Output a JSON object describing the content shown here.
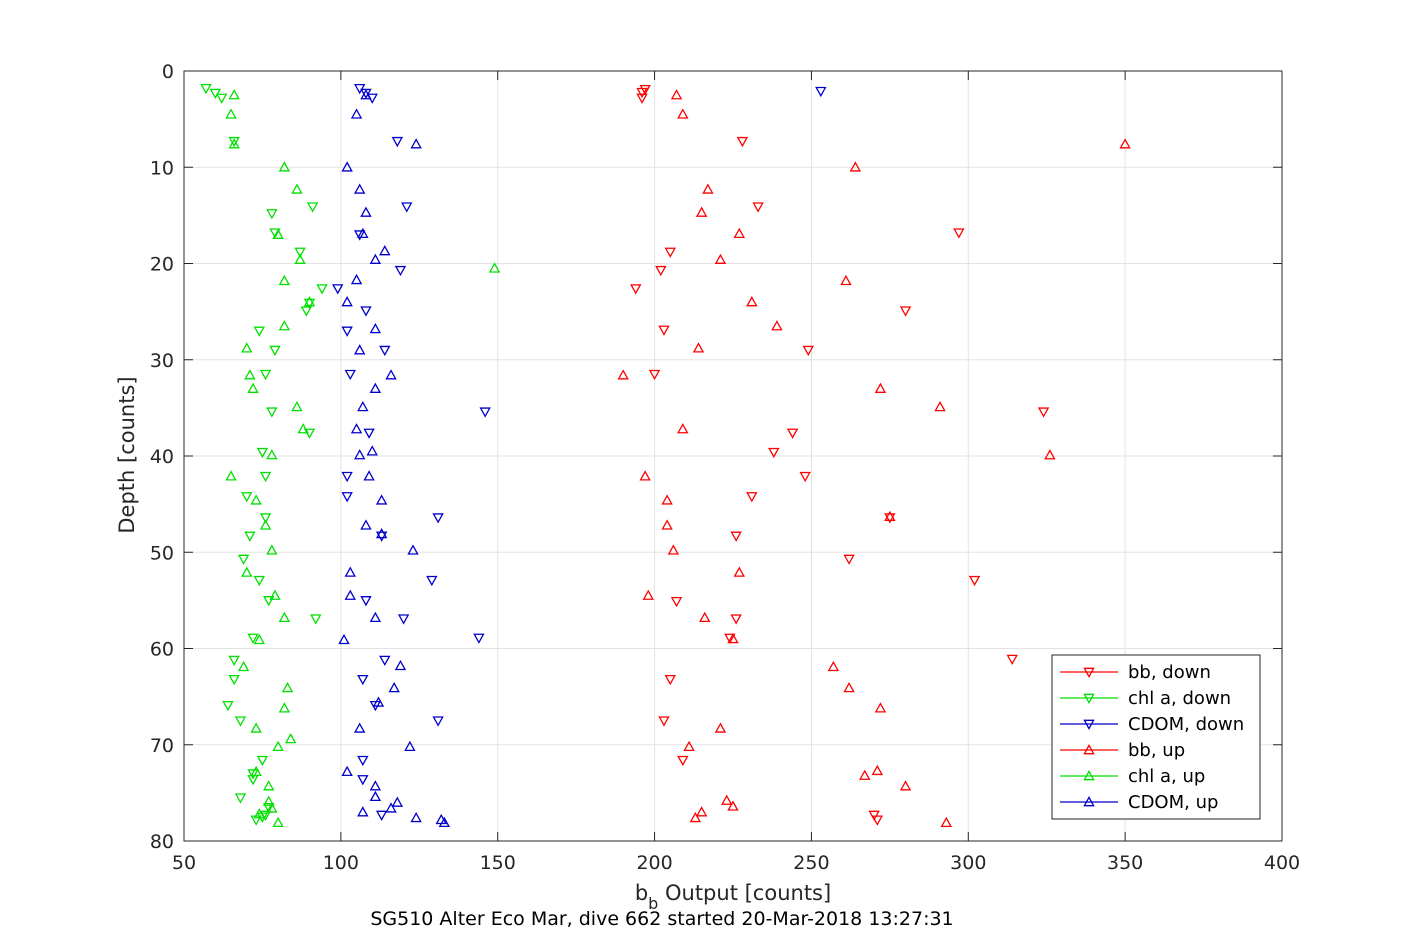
{
  "chart_data": {
    "type": "scatter",
    "xlabel": "b_b Output [counts]",
    "xlabel_main": "b",
    "xlabel_sub": "b",
    "xlabel_rest": " Output [counts]",
    "ylabel": "Depth [counts]",
    "caption": "SG510 Alter Eco Mar, dive 662 started 20-Mar-2018 13:27:31",
    "xlim": [
      50,
      400
    ],
    "ylim": [
      0,
      80
    ],
    "y_reversed": true,
    "grid": true,
    "legend_position": "lower-right",
    "xticks": [
      "50",
      "100",
      "150",
      "200",
      "250",
      "300",
      "350",
      "400"
    ],
    "yticks": [
      "0",
      "10",
      "20",
      "30",
      "40",
      "50",
      "60",
      "70",
      "80"
    ],
    "series": [
      {
        "name": "bb, down",
        "color": "#ff0000",
        "marker": "triangle-down",
        "points": [
          [
            197,
            1.9
          ],
          [
            196,
            2.2
          ],
          [
            196,
            2.8
          ],
          [
            228,
            7.3
          ],
          [
            233,
            14.1
          ],
          [
            297,
            16.8
          ],
          [
            205,
            18.8
          ],
          [
            202,
            20.7
          ],
          [
            194,
            22.6
          ],
          [
            280,
            24.9
          ],
          [
            203,
            26.9
          ],
          [
            249,
            29.0
          ],
          [
            200,
            31.5
          ],
          [
            324,
            35.4
          ],
          [
            244,
            37.6
          ],
          [
            238,
            39.6
          ],
          [
            248,
            42.1
          ],
          [
            231,
            44.2
          ],
          [
            275,
            46.4
          ],
          [
            226,
            48.3
          ],
          [
            262,
            50.7
          ],
          [
            302,
            52.9
          ],
          [
            207,
            55.1
          ],
          [
            226,
            56.9
          ],
          [
            224,
            58.9
          ],
          [
            314,
            61.1
          ],
          [
            205,
            63.2
          ],
          [
            203,
            67.5
          ],
          [
            209,
            71.6
          ],
          [
            270,
            77.3
          ],
          [
            271,
            77.8
          ]
        ]
      },
      {
        "name": "chl a, down",
        "color": "#00e000",
        "marker": "triangle-down",
        "points": [
          [
            57,
            1.8
          ],
          [
            60,
            2.3
          ],
          [
            62,
            2.8
          ],
          [
            66,
            7.3
          ],
          [
            91,
            14.1
          ],
          [
            78,
            14.8
          ],
          [
            79,
            16.8
          ],
          [
            87,
            18.8
          ],
          [
            94,
            22.6
          ],
          [
            90,
            24.1
          ],
          [
            89,
            24.9
          ],
          [
            74,
            27.0
          ],
          [
            79,
            29.0
          ],
          [
            76,
            31.5
          ],
          [
            78,
            35.4
          ],
          [
            90,
            37.6
          ],
          [
            75,
            39.6
          ],
          [
            76,
            42.1
          ],
          [
            70,
            44.2
          ],
          [
            76,
            46.4
          ],
          [
            71,
            48.3
          ],
          [
            69,
            50.7
          ],
          [
            74,
            52.9
          ],
          [
            77,
            55.0
          ],
          [
            92,
            56.9
          ],
          [
            72,
            58.9
          ],
          [
            66,
            61.2
          ],
          [
            66,
            63.2
          ],
          [
            64,
            65.9
          ],
          [
            68,
            67.5
          ],
          [
            75,
            71.6
          ],
          [
            72,
            73.0
          ],
          [
            72,
            73.6
          ],
          [
            68,
            75.5
          ],
          [
            77,
            76.5
          ],
          [
            76,
            77.3
          ],
          [
            75,
            77.5
          ],
          [
            73,
            77.8
          ]
        ]
      },
      {
        "name": "CDOM, down",
        "color": "#0000cc",
        "marker": "triangle-down",
        "points": [
          [
            106,
            1.8
          ],
          [
            108,
            2.3
          ],
          [
            110,
            2.8
          ],
          [
            253,
            2.1
          ],
          [
            118,
            7.3
          ],
          [
            121,
            14.1
          ],
          [
            106,
            17.0
          ],
          [
            119,
            20.7
          ],
          [
            99,
            22.6
          ],
          [
            108,
            24.9
          ],
          [
            102,
            27.0
          ],
          [
            114,
            29.0
          ],
          [
            103,
            31.5
          ],
          [
            146,
            35.4
          ],
          [
            109,
            37.6
          ],
          [
            102,
            42.1
          ],
          [
            102,
            44.2
          ],
          [
            131,
            46.4
          ],
          [
            113,
            48.3
          ],
          [
            129,
            52.9
          ],
          [
            108,
            55.0
          ],
          [
            120,
            56.9
          ],
          [
            144,
            58.9
          ],
          [
            114,
            61.2
          ],
          [
            107,
            63.2
          ],
          [
            111,
            65.9
          ],
          [
            131,
            67.5
          ],
          [
            107,
            71.6
          ],
          [
            107,
            73.6
          ],
          [
            113,
            77.3
          ]
        ]
      },
      {
        "name": "bb, up",
        "color": "#ff0000",
        "marker": "triangle-up",
        "points": [
          [
            207,
            2.5
          ],
          [
            209,
            4.5
          ],
          [
            350,
            7.6
          ],
          [
            264,
            10.0
          ],
          [
            217,
            12.3
          ],
          [
            215,
            14.7
          ],
          [
            227,
            16.9
          ],
          [
            221,
            19.6
          ],
          [
            261,
            21.8
          ],
          [
            231,
            24.0
          ],
          [
            239,
            26.5
          ],
          [
            214,
            28.8
          ],
          [
            190,
            31.6
          ],
          [
            272,
            33.0
          ],
          [
            291,
            34.9
          ],
          [
            209,
            37.2
          ],
          [
            326,
            39.9
          ],
          [
            197,
            42.1
          ],
          [
            204,
            44.6
          ],
          [
            275,
            46.3
          ],
          [
            204,
            47.2
          ],
          [
            206,
            49.8
          ],
          [
            227,
            52.1
          ],
          [
            198,
            54.5
          ],
          [
            216,
            56.8
          ],
          [
            225,
            59.0
          ],
          [
            257,
            61.9
          ],
          [
            262,
            64.1
          ],
          [
            272,
            66.2
          ],
          [
            221,
            68.3
          ],
          [
            211,
            70.2
          ],
          [
            267,
            73.2
          ],
          [
            271,
            72.7
          ],
          [
            280,
            74.3
          ],
          [
            223,
            75.8
          ],
          [
            225,
            76.4
          ],
          [
            215,
            77.0
          ],
          [
            213,
            77.6
          ],
          [
            293,
            78.1
          ]
        ]
      },
      {
        "name": "chl a, up",
        "color": "#00e000",
        "marker": "triangle-up",
        "points": [
          [
            66,
            2.5
          ],
          [
            65,
            4.5
          ],
          [
            66,
            7.6
          ],
          [
            82,
            10.0
          ],
          [
            86,
            12.3
          ],
          [
            80,
            17.0
          ],
          [
            87,
            19.6
          ],
          [
            149,
            20.5
          ],
          [
            82,
            21.8
          ],
          [
            90,
            24.0
          ],
          [
            82,
            26.5
          ],
          [
            70,
            28.8
          ],
          [
            71,
            31.6
          ],
          [
            72,
            33.0
          ],
          [
            86,
            34.9
          ],
          [
            88,
            37.2
          ],
          [
            78,
            39.9
          ],
          [
            65,
            42.1
          ],
          [
            73,
            44.6
          ],
          [
            76,
            47.2
          ],
          [
            78,
            49.8
          ],
          [
            70,
            52.1
          ],
          [
            79,
            54.5
          ],
          [
            82,
            56.8
          ],
          [
            74,
            59.1
          ],
          [
            69,
            61.9
          ],
          [
            83,
            64.1
          ],
          [
            82,
            66.2
          ],
          [
            73,
            68.3
          ],
          [
            84,
            69.4
          ],
          [
            80,
            70.2
          ],
          [
            73,
            72.8
          ],
          [
            77,
            74.3
          ],
          [
            77,
            75.9
          ],
          [
            78,
            76.6
          ],
          [
            74,
            77.2
          ],
          [
            80,
            78.1
          ]
        ]
      },
      {
        "name": "CDOM, up",
        "color": "#0000cc",
        "marker": "triangle-up",
        "points": [
          [
            108,
            2.5
          ],
          [
            105,
            4.5
          ],
          [
            124,
            7.6
          ],
          [
            102,
            10.0
          ],
          [
            106,
            12.3
          ],
          [
            108,
            14.7
          ],
          [
            107,
            16.9
          ],
          [
            114,
            18.7
          ],
          [
            111,
            19.6
          ],
          [
            105,
            21.7
          ],
          [
            102,
            24.0
          ],
          [
            111,
            26.8
          ],
          [
            106,
            29.0
          ],
          [
            116,
            31.6
          ],
          [
            111,
            33.0
          ],
          [
            107,
            34.9
          ],
          [
            105,
            37.2
          ],
          [
            110,
            39.5
          ],
          [
            106,
            39.9
          ],
          [
            109,
            42.1
          ],
          [
            113,
            44.6
          ],
          [
            108,
            47.2
          ],
          [
            113,
            48.1
          ],
          [
            123,
            49.8
          ],
          [
            103,
            52.1
          ],
          [
            103,
            54.5
          ],
          [
            111,
            56.8
          ],
          [
            101,
            59.1
          ],
          [
            119,
            61.8
          ],
          [
            117,
            64.1
          ],
          [
            112,
            65.6
          ],
          [
            106,
            68.3
          ],
          [
            122,
            70.2
          ],
          [
            102,
            72.8
          ],
          [
            111,
            74.3
          ],
          [
            111,
            75.4
          ],
          [
            118,
            76.0
          ],
          [
            116,
            76.6
          ],
          [
            107,
            77.0
          ],
          [
            124,
            77.6
          ],
          [
            132,
            77.8
          ],
          [
            133,
            78.1
          ]
        ]
      }
    ]
  }
}
